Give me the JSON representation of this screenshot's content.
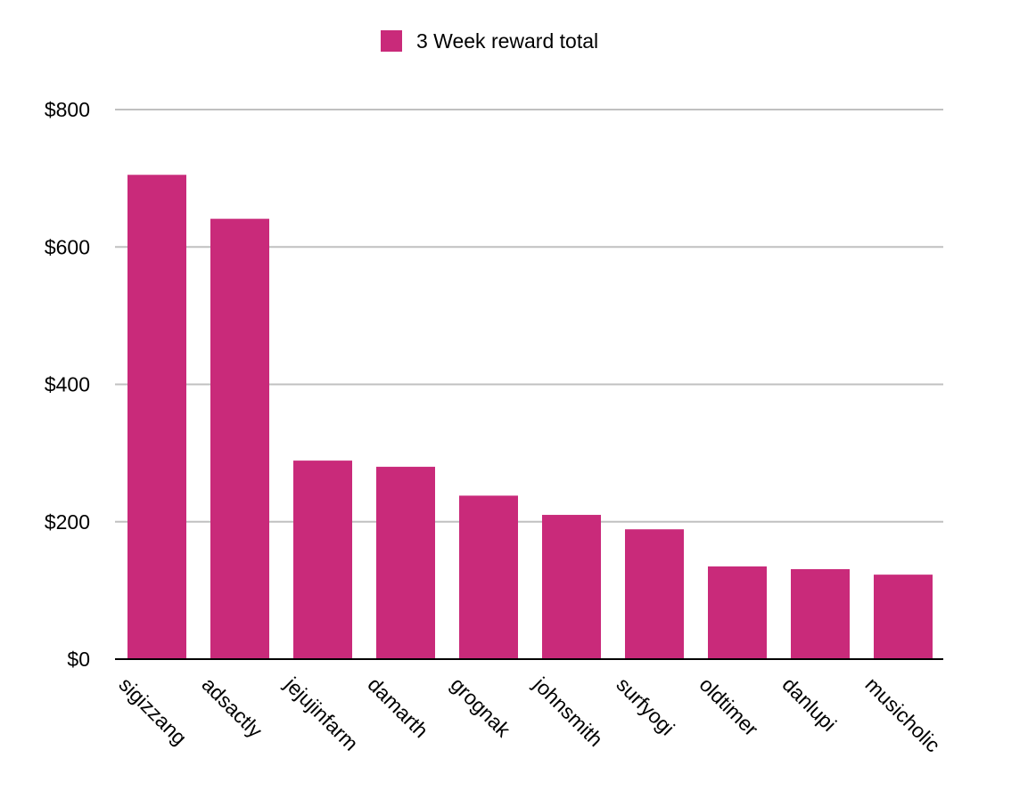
{
  "chart_data": {
    "type": "bar",
    "categories": [
      "sigizzang",
      "adsactly",
      "jejujinfarm",
      "damarth",
      "grognak",
      "johnsmith",
      "surfyogi",
      "oldtimer",
      "danlupi",
      "musicholic"
    ],
    "series": [
      {
        "name": "3 Week reward total",
        "values": [
          705,
          641,
          289,
          280,
          238,
          210,
          189,
          135,
          131,
          123
        ],
        "color": "#c92a7a"
      }
    ],
    "yticks": [
      "$0",
      "$200",
      "$400",
      "$600",
      "$800"
    ],
    "ytick_values": [
      0,
      200,
      400,
      600,
      800
    ],
    "ylim": [
      0,
      800
    ],
    "grid": true,
    "legend_position": "top-center",
    "title": "",
    "xlabel": "",
    "ylabel": ""
  },
  "colors": {
    "grid": "#c0c0c0",
    "axis": "#000000",
    "bar": "#c92a7a"
  }
}
